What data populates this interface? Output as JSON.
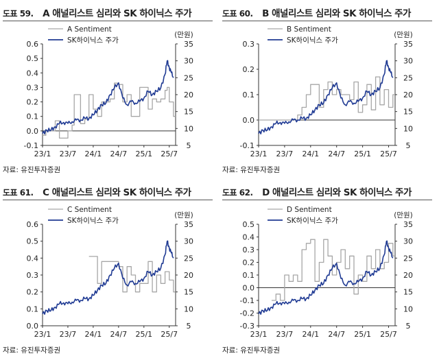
{
  "panels": [
    {
      "fig_label": "도표 59.",
      "title": "A 애널리스트 심리와 SK 하이닉스 주가",
      "source": "자료: 유진투자증권",
      "chart_data": {
        "type": "line",
        "title": "A 애널리스트 심리와 SK 하이닉스 주가",
        "x_tick_labels": [
          "23/1",
          "23/7",
          "24/1",
          "24/7",
          "25/1",
          "25/7"
        ],
        "x_tick_positions": [
          0,
          6,
          12,
          18,
          24,
          30
        ],
        "x_range": [
          0,
          31.5
        ],
        "y_left": {
          "ticks": [
            -0.1,
            0.0,
            0.1,
            0.2,
            0.3,
            0.4,
            0.5,
            0.6
          ],
          "range": [
            -0.1,
            0.6
          ]
        },
        "y_right": {
          "ticks": [
            5,
            10,
            15,
            20,
            25,
            30,
            35
          ],
          "range": [
            5,
            35
          ],
          "unit_label": "(만원)"
        },
        "series": [
          {
            "name": "A Sentiment",
            "axis": "left",
            "color": "#a6a6a6",
            "x": [
              0,
              0.8,
              1,
              2,
              3,
              4,
              5,
              6,
              7,
              7.5,
              8,
              9,
              10,
              11,
              12,
              13,
              14,
              15,
              16,
              17,
              18,
              19,
              20,
              21,
              22,
              23,
              24,
              25,
              26,
              27,
              28,
              29,
              29.5,
              30,
              31
            ],
            "y": [
              -0.03,
              0.0,
              0.0,
              0.0,
              0.07,
              -0.05,
              -0.05,
              0.0,
              0.04,
              0.25,
              0.25,
              0.05,
              0.08,
              0.25,
              0.15,
              0.1,
              0.2,
              0.2,
              0.22,
              0.33,
              0.32,
              0.2,
              0.25,
              0.1,
              0.1,
              0.3,
              0.3,
              0.15,
              0.22,
              0.2,
              0.22,
              0.28,
              0.3,
              0.2,
              0.1
            ]
          },
          {
            "name": "SK하이닉스 주가",
            "axis": "right",
            "color": "#1f3a93",
            "x": [
              0,
              1,
              2,
              3,
              4,
              5,
              6,
              7,
              8,
              9,
              10,
              11,
              12,
              13,
              14,
              15,
              16,
              17,
              18,
              19,
              20,
              21,
              22,
              23,
              24,
              25,
              26,
              27,
              28,
              29,
              29.5,
              30,
              30.5,
              31
            ],
            "y": [
              8.5,
              9.5,
              9.5,
              10.5,
              11.5,
              11.8,
              11.5,
              12,
              12.5,
              12.5,
              13,
              13,
              14,
              15.5,
              17,
              17.5,
              20,
              22,
              23.5,
              19,
              17,
              18,
              17.5,
              18,
              19,
              21,
              20,
              21,
              22,
              26,
              30,
              28,
              26.5,
              25
            ]
          }
        ]
      }
    },
    {
      "fig_label": "도표 60.",
      "title": "B 애널리스트 심리와 SK 하이닉스 주가",
      "source": "자료: 유진투자증권",
      "chart_data": {
        "type": "line",
        "title": "B 애널리스트 심리와 SK 하이닉스 주가",
        "x_tick_labels": [
          "23/1",
          "23/7",
          "24/1",
          "24/7",
          "25/1",
          "25/7"
        ],
        "x_tick_positions": [
          0,
          6,
          12,
          18,
          24,
          30
        ],
        "x_range": [
          0,
          31.5
        ],
        "y_left": {
          "ticks": [
            -0.1,
            0.0,
            0.1,
            0.2,
            0.3
          ],
          "range": [
            -0.1,
            0.3
          ]
        },
        "y_right": {
          "ticks": [
            5,
            10,
            15,
            20,
            25,
            30,
            35
          ],
          "range": [
            5,
            35
          ],
          "unit_label": "(만원)"
        },
        "series": [
          {
            "name": "B Sentiment",
            "axis": "left",
            "color": "#a6a6a6",
            "x": [
              0,
              4,
              5,
              6,
              7,
              8,
              9,
              10,
              11,
              12,
              13,
              14,
              15,
              16,
              17,
              18,
              19,
              20,
              21,
              22,
              23,
              24,
              25,
              26,
              27,
              28,
              29,
              30,
              31
            ],
            "y": [
              0.0,
              0.0,
              0.0,
              0.0,
              0.0,
              0.0,
              0.02,
              0.05,
              0.1,
              0.14,
              0.14,
              0.05,
              0.12,
              0.15,
              0.1,
              0.12,
              0.1,
              0.1,
              0.08,
              0.15,
              0.03,
              0.06,
              0.14,
              0.04,
              0.17,
              0.06,
              0.12,
              0.05,
              0.1
            ]
          },
          {
            "name": "SK하이닉스 주가",
            "axis": "right",
            "color": "#1f3a93",
            "x": [
              0,
              1,
              2,
              3,
              4,
              5,
              6,
              7,
              8,
              9,
              10,
              11,
              12,
              13,
              14,
              15,
              16,
              17,
              18,
              19,
              20,
              21,
              22,
              23,
              24,
              25,
              26,
              27,
              28,
              29,
              29.5,
              30,
              30.5,
              31
            ],
            "y": [
              8.5,
              9.5,
              9.5,
              10.5,
              11.5,
              11.8,
              11.5,
              12,
              12.5,
              12.5,
              13,
              13,
              14,
              15.5,
              17,
              17.5,
              20,
              22,
              23.5,
              19,
              17,
              18,
              17.5,
              18,
              19,
              21,
              20,
              21,
              22,
              26,
              30,
              28,
              26.5,
              25
            ]
          }
        ]
      }
    },
    {
      "fig_label": "도표 61.",
      "title": "C 애널리스트 심리와 SK 하이닉스 주가",
      "source": "자료: 유진투자증권",
      "chart_data": {
        "type": "line",
        "title": "C 애널리스트 심리와 SK 하이닉스 주가",
        "x_tick_labels": [
          "23/1",
          "23/7",
          "24/1",
          "24/7",
          "25/1",
          "25/7"
        ],
        "x_tick_positions": [
          0,
          6,
          12,
          18,
          24,
          30
        ],
        "x_range": [
          0,
          31.5
        ],
        "y_left": {
          "ticks": [
            0.0,
            0.1,
            0.2,
            0.3,
            0.4,
            0.5,
            0.6
          ],
          "range": [
            0.0,
            0.6
          ]
        },
        "y_right": {
          "ticks": [
            5,
            10,
            15,
            20,
            25,
            30,
            35
          ],
          "range": [
            5,
            35
          ],
          "unit_label": "(만원)"
        },
        "series": [
          {
            "name": "C Sentiment",
            "axis": "left",
            "color": "#a6a6a6",
            "x": [
              11,
              12,
              13,
              14,
              15,
              16,
              17,
              18,
              19,
              20,
              21,
              22,
              23,
              24,
              25,
              26,
              27,
              28,
              29,
              30,
              31
            ],
            "y": [
              0.41,
              0.41,
              0.25,
              0.38,
              0.38,
              0.38,
              0.38,
              0.35,
              0.2,
              0.35,
              0.3,
              0.2,
              0.25,
              0.25,
              0.38,
              0.2,
              0.3,
              0.25,
              0.32,
              0.27,
              0.2
            ]
          },
          {
            "name": "SK하이닉스 주가",
            "axis": "right",
            "color": "#1f3a93",
            "x": [
              0,
              1,
              2,
              3,
              4,
              5,
              6,
              7,
              8,
              9,
              10,
              11,
              12,
              13,
              14,
              15,
              16,
              17,
              18,
              19,
              20,
              21,
              22,
              23,
              24,
              25,
              26,
              27,
              28,
              29,
              29.5,
              30,
              30.5,
              31
            ],
            "y": [
              8.5,
              9.5,
              9.5,
              10.5,
              11.5,
              11.8,
              11.5,
              12,
              12.5,
              12.5,
              13,
              13,
              14,
              15.5,
              17,
              17.5,
              20,
              22,
              23.5,
              19,
              17,
              18,
              17.5,
              18,
              19,
              21,
              20,
              21,
              22,
              26,
              30,
              28,
              26.5,
              25
            ]
          }
        ]
      }
    },
    {
      "fig_label": "도표 62.",
      "title": "D 애널리스트 심리와 SK 하이닉스 주가",
      "source": "자료: 유진투자증권",
      "chart_data": {
        "type": "line",
        "title": "D 애널리스트 심리와 SK 하이닉스 주가",
        "x_tick_labels": [
          "23/1",
          "23/7",
          "24/1",
          "24/7",
          "25/1",
          "25/7"
        ],
        "x_tick_positions": [
          0,
          6,
          12,
          18,
          24,
          30
        ],
        "x_range": [
          0,
          31.5
        ],
        "y_left": {
          "ticks": [
            -0.3,
            -0.2,
            -0.1,
            0.0,
            0.1,
            0.2,
            0.3,
            0.4,
            0.5
          ],
          "range": [
            -0.3,
            0.5
          ]
        },
        "y_right": {
          "ticks": [
            5,
            10,
            15,
            20,
            25,
            30,
            35
          ],
          "range": [
            5,
            35
          ],
          "unit_label": "(만원)"
        },
        "series": [
          {
            "name": "D Sentiment",
            "axis": "left",
            "color": "#a6a6a6",
            "x": [
              3,
              4,
              5,
              6,
              7,
              8,
              9,
              10,
              11,
              12,
              13,
              14,
              15,
              16,
              17,
              18,
              19,
              20,
              21,
              22,
              23,
              24,
              25,
              26,
              27,
              28,
              29,
              30,
              31
            ],
            "y": [
              -0.1,
              -0.05,
              -0.1,
              0.1,
              0.05,
              0.1,
              0.05,
              0.3,
              0.35,
              0.38,
              0.05,
              0.2,
              0.38,
              0.25,
              0.1,
              0.2,
              0.3,
              0.15,
              0.25,
              -0.05,
              0.1,
              0.05,
              0.25,
              0.15,
              0.3,
              0.15,
              0.2,
              0.35,
              0.25
            ]
          },
          {
            "name": "SK하이닉스 주가",
            "axis": "right",
            "color": "#1f3a93",
            "x": [
              0,
              1,
              2,
              3,
              4,
              5,
              6,
              7,
              8,
              9,
              10,
              11,
              12,
              13,
              14,
              15,
              16,
              17,
              18,
              19,
              20,
              21,
              22,
              23,
              24,
              25,
              26,
              27,
              28,
              29,
              29.5,
              30,
              30.5,
              31
            ],
            "y": [
              8.5,
              9.5,
              9.5,
              10.5,
              11.5,
              11.8,
              11.5,
              12,
              12.5,
              12.5,
              13,
              13,
              14,
              15.5,
              17,
              17.5,
              20,
              22,
              23.5,
              19,
              17,
              18,
              17.5,
              18,
              19,
              21,
              20,
              21,
              22,
              26,
              30,
              28,
              26.5,
              25
            ]
          }
        ]
      }
    }
  ]
}
